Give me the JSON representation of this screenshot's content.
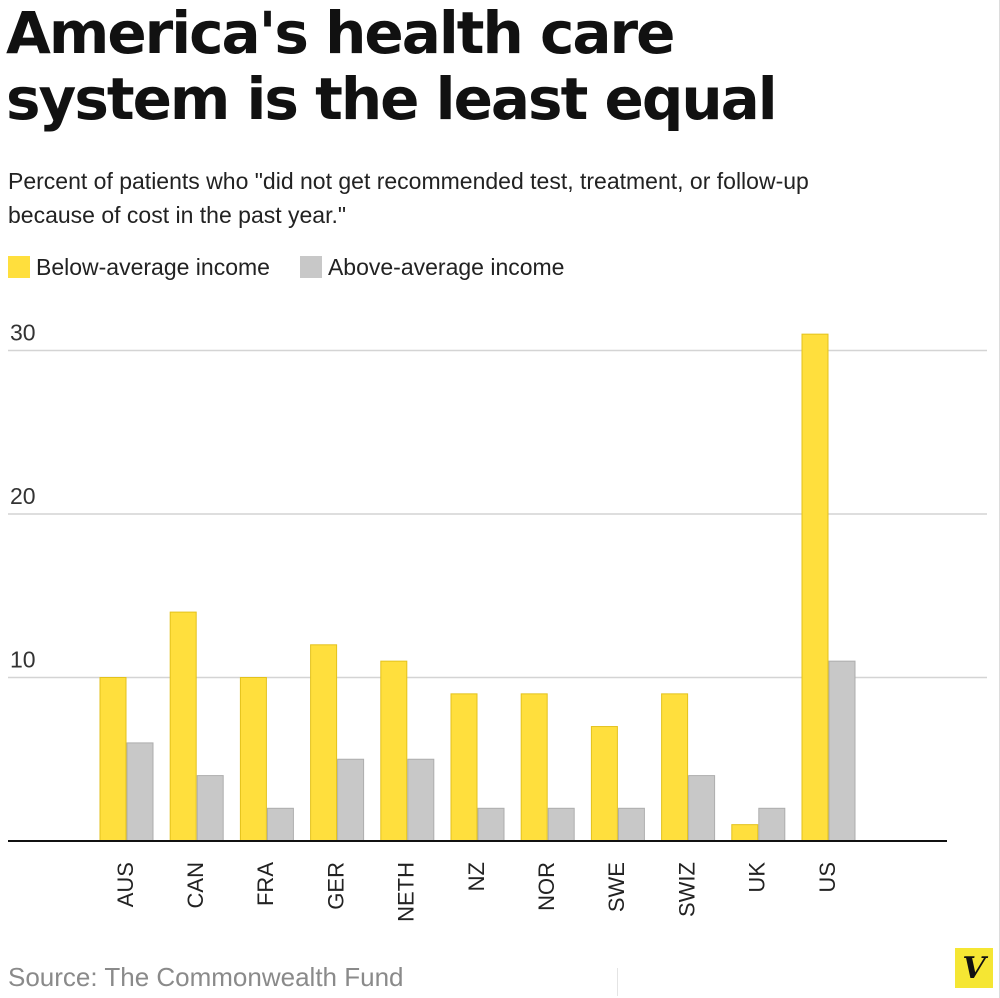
{
  "title_lines": [
    "America's health care",
    "system is the least equal"
  ],
  "subtitle_lines": [
    "Percent of patients who \"did not get recommended test, treatment, or follow-up",
    "because of cost in the past year.\""
  ],
  "source": "Source: The Commonwealth Fund",
  "logo_letter": "V",
  "colors": {
    "below": "#ffdf3d",
    "above": "#c8c8c8",
    "gridline": "#d4d4d4",
    "axis": "#111111",
    "logo_bg": "#f5e633"
  },
  "chart_data": {
    "type": "bar",
    "categories": [
      "AUS",
      "CAN",
      "FRA",
      "GER",
      "NETH",
      "NZ",
      "NOR",
      "SWE",
      "SWIZ",
      "UK",
      "US"
    ],
    "series": [
      {
        "name": "Below-average income",
        "values": [
          10,
          14,
          10,
          12,
          11,
          9,
          9,
          7,
          9,
          1,
          31
        ]
      },
      {
        "name": "Above-average income",
        "values": [
          6,
          4,
          2,
          5,
          5,
          2,
          2,
          2,
          4,
          2,
          11
        ]
      }
    ],
    "yticks": [
      10,
      20,
      30
    ],
    "ylim": [
      0,
      33
    ],
    "grid": true,
    "legend_position": "top-left",
    "xlabel": "",
    "ylabel": ""
  }
}
